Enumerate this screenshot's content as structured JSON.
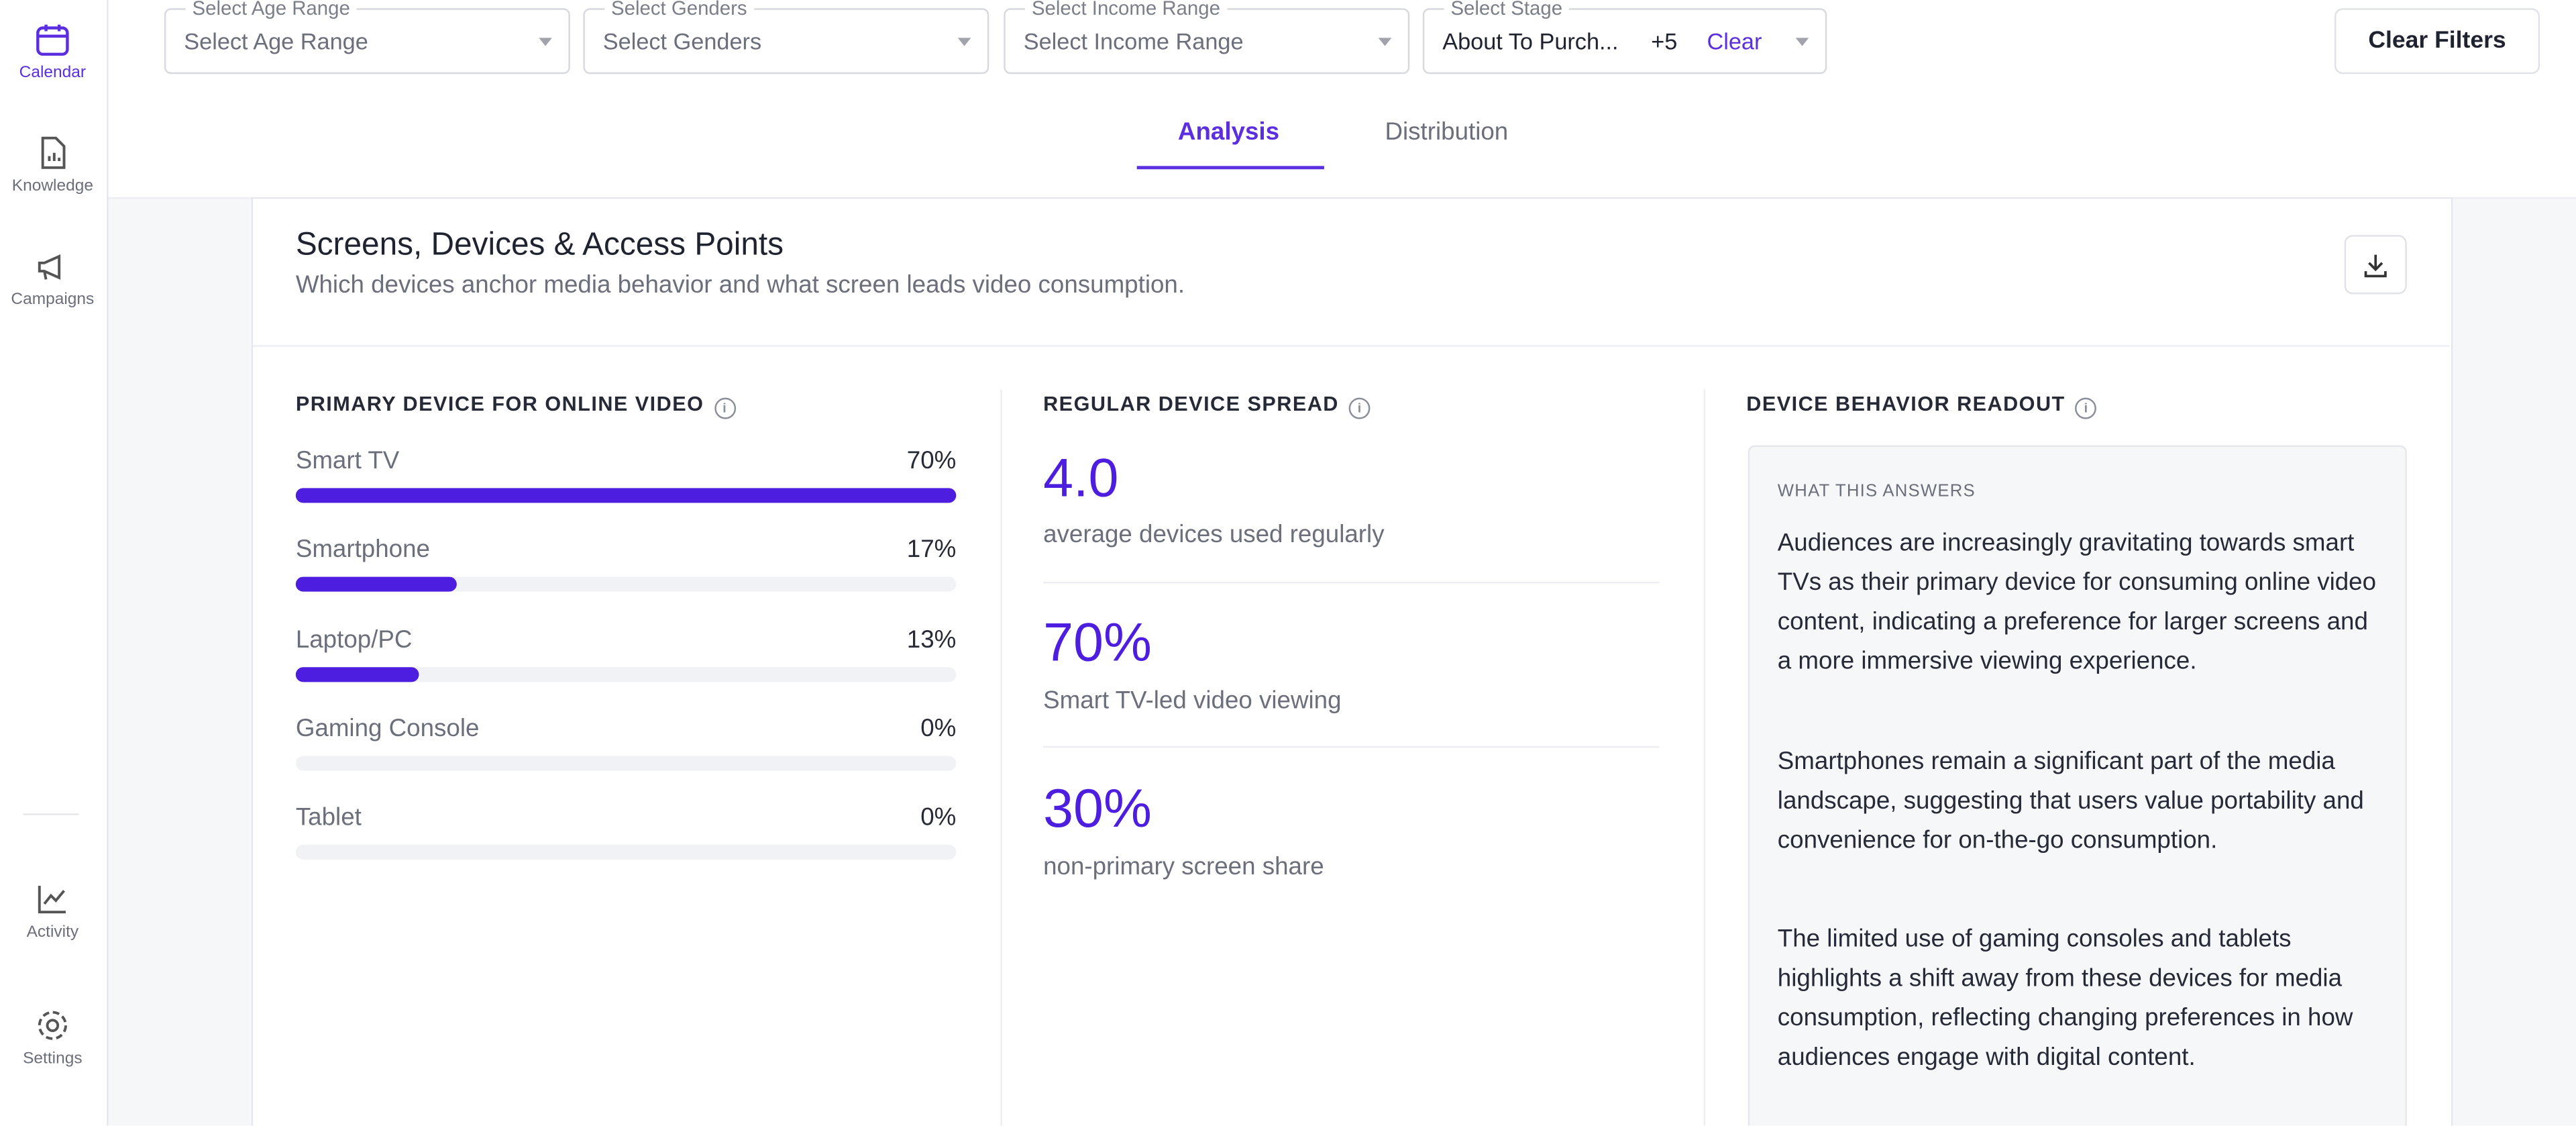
{
  "sidebar": {
    "items": [
      "Calendar",
      "Knowledge",
      "Campaigns",
      "Activity",
      "Settings"
    ]
  },
  "filters": [
    {
      "label": "Select Age Range",
      "placeholder": "Select Age Range"
    },
    {
      "label": "Select Genders",
      "placeholder": "Select Genders"
    },
    {
      "label": "Select Income Range",
      "placeholder": "Select Income Range"
    },
    {
      "label": "Select Stage",
      "value": "About To Purch...",
      "extra": "+5",
      "clear": "Clear"
    }
  ],
  "clear_filters": "Clear Filters",
  "tabs": [
    "Analysis",
    "Distribution"
  ],
  "card": {
    "title": "Screens, Devices & Access Points",
    "subtitle": "Which devices anchor media behavior and what screen leads video consumption."
  },
  "primary_device": {
    "title": "PRIMARY DEVICE FOR ONLINE VIDEO",
    "items": [
      {
        "label": "Smart TV",
        "value": 70,
        "value_label": "70%"
      },
      {
        "label": "Smartphone",
        "value": 17,
        "value_label": "17%"
      },
      {
        "label": "Laptop/PC",
        "value": 13,
        "value_label": "13%"
      },
      {
        "label": "Gaming Console",
        "value": 0,
        "value_label": "0%"
      },
      {
        "label": "Tablet",
        "value": 0,
        "value_label": "0%"
      }
    ]
  },
  "device_spread": {
    "title": "REGULAR DEVICE SPREAD",
    "metrics": [
      {
        "value": "4.0",
        "label": "average devices used regularly"
      },
      {
        "value": "70%",
        "label": "Smart TV-led video viewing"
      },
      {
        "value": "30%",
        "label": "non-primary screen share"
      }
    ]
  },
  "readout": {
    "title": "DEVICE BEHAVIOR READOUT",
    "subtitle": "WHAT THIS ANSWERS",
    "paragraphs": [
      "Audiences are increasingly gravitating towards smart TVs as their primary device for consuming online video content, indicating a preference for larger screens and a more immersive viewing experience.",
      "Smartphones remain a significant part of the media landscape, suggesting that users value portability and convenience for on-the-go consumption.",
      "The limited use of gaming consoles and tablets highlights a shift away from these devices for media consumption, reflecting changing preferences in how audiences engage with digital content."
    ]
  }
}
